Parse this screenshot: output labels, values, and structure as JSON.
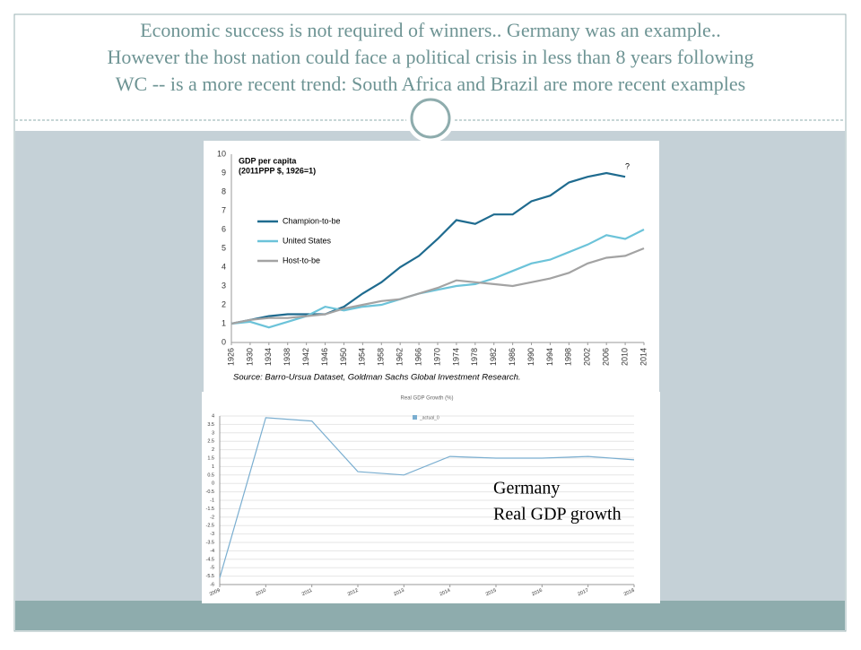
{
  "title": [
    "Economic success is not required of winners.. Germany was an example..",
    "However the host nation could face a political crisis in less than 8 years following",
    "WC  -- is a more recent trend: South Africa and Brazil are more recent examples"
  ],
  "chart_data": [
    {
      "type": "line",
      "title": "GDP per capita",
      "subtitle": "(2011PPP $, 1926=1)",
      "x": [
        1926,
        1930,
        1934,
        1938,
        1942,
        1946,
        1950,
        1954,
        1958,
        1962,
        1966,
        1970,
        1974,
        1978,
        1982,
        1986,
        1990,
        1994,
        1998,
        2002,
        2006,
        2010,
        2014
      ],
      "xlim": [
        1926,
        2014
      ],
      "xticks": [
        1926,
        1930,
        1934,
        1938,
        1942,
        1946,
        1950,
        1954,
        1958,
        1962,
        1966,
        1970,
        1974,
        1978,
        1982,
        1986,
        1990,
        1994,
        1998,
        2002,
        2006,
        2010,
        2014
      ],
      "ylim": [
        0,
        10
      ],
      "yticks": [
        0,
        1,
        2,
        3,
        4,
        5,
        6,
        7,
        8,
        9,
        10
      ],
      "series": [
        {
          "name": "Champion-to-be",
          "color": "#1f6b8f",
          "values": [
            1.0,
            1.2,
            1.4,
            1.5,
            1.5,
            1.5,
            1.9,
            2.6,
            3.2,
            4.0,
            4.6,
            5.5,
            6.5,
            6.3,
            6.8,
            6.8,
            7.5,
            7.8,
            8.5,
            8.8,
            9.0,
            8.8,
            null
          ]
        },
        {
          "name": "United States",
          "color": "#6cc3d9",
          "values": [
            1.0,
            1.1,
            0.8,
            1.1,
            1.4,
            1.9,
            1.7,
            1.9,
            2.0,
            2.3,
            2.6,
            2.8,
            3.0,
            3.1,
            3.4,
            3.8,
            4.2,
            4.4,
            4.8,
            5.2,
            5.7,
            5.5,
            6.0
          ]
        },
        {
          "name": "Host-to-be",
          "color": "#a3a3a3",
          "values": [
            1.0,
            1.2,
            1.3,
            1.3,
            1.4,
            1.5,
            1.8,
            2.0,
            2.2,
            2.3,
            2.6,
            2.9,
            3.3,
            3.2,
            3.1,
            3.0,
            3.2,
            3.4,
            3.7,
            4.2,
            4.5,
            4.6,
            5.0
          ]
        }
      ],
      "annotation": "?",
      "source": "Source: Barro-Ursua Dataset, Goldman Sachs Global Investment Research."
    },
    {
      "type": "line",
      "title": "Real GDP Growth (%)",
      "x": [
        2009,
        2010,
        2011,
        2012,
        2013,
        2014,
        2015,
        2016,
        2017,
        2018
      ],
      "xlim": [
        2009,
        2018
      ],
      "xticks": [
        2009,
        2010,
        2011,
        2012,
        2013,
        2014,
        2015,
        2016,
        2017,
        2018
      ],
      "ylim": [
        -6,
        4
      ],
      "yticks": [
        -6,
        -5.5,
        -5,
        -4.5,
        -4,
        -3.5,
        -3,
        -2.5,
        -2,
        -1.5,
        -1,
        -0.5,
        0,
        0.5,
        1,
        1.5,
        2,
        2.5,
        3,
        3.5,
        4
      ],
      "grid": true,
      "series": [
        {
          "name": "_actual_0",
          "color": "#7aaed0",
          "values": [
            -5.6,
            3.9,
            3.7,
            0.7,
            0.5,
            1.6,
            1.5,
            1.5,
            1.6,
            1.4
          ]
        }
      ],
      "annotation": [
        "Germany",
        "Real GDP growth"
      ]
    }
  ]
}
